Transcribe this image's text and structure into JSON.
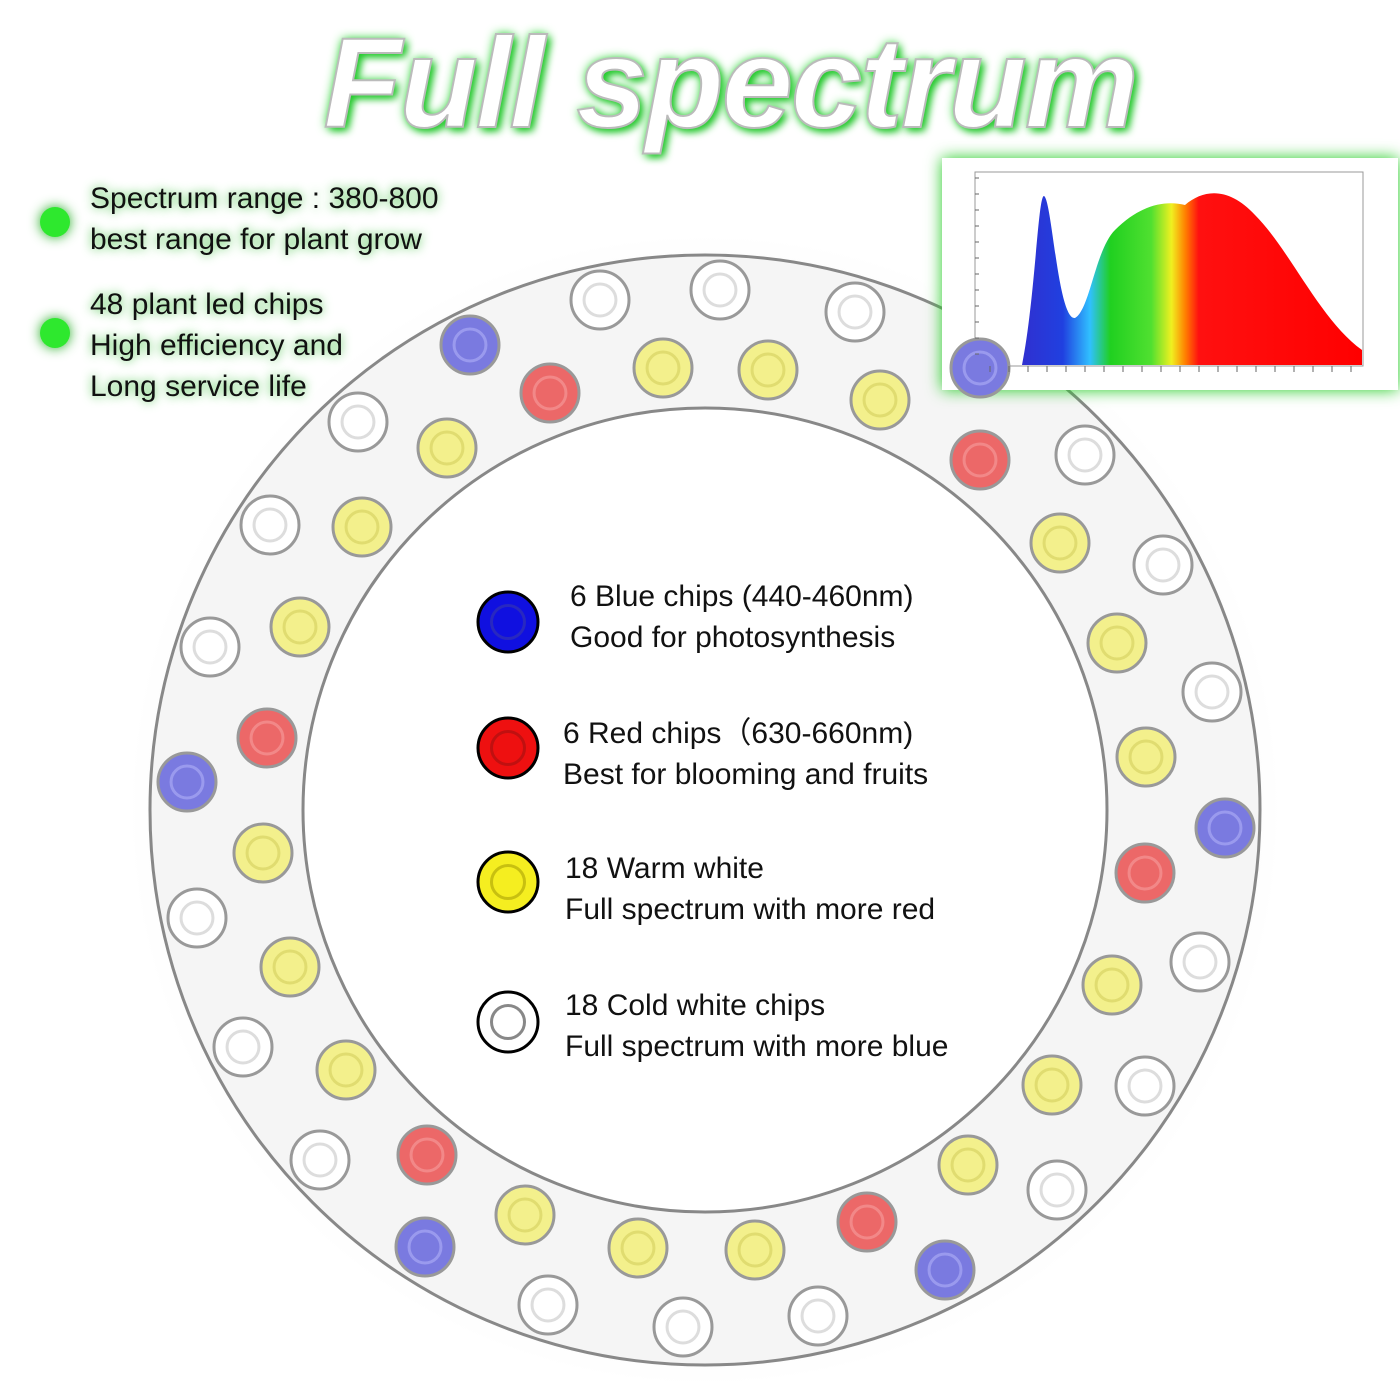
{
  "title": "Full spectrum",
  "features": [
    {
      "lines": [
        "Spectrum range : 380-800",
        "best range for plant grow"
      ]
    },
    {
      "lines": [
        "48 plant led chips",
        "High efficiency and",
        "Long service life"
      ]
    }
  ],
  "legend": [
    {
      "lines": [
        "6 Blue chips (440-460nm)",
        "Good for photosynthesis"
      ]
    },
    {
      "lines": [
        "6 Red chips（630-660nm)",
        "Best for blooming and fruits"
      ]
    },
    {
      "lines": [
        "18 Warm white",
        "Full spectrum with more red"
      ]
    },
    {
      "lines": [
        "18 Cold white chips",
        "Full spectrum with more blue"
      ]
    }
  ]
}
